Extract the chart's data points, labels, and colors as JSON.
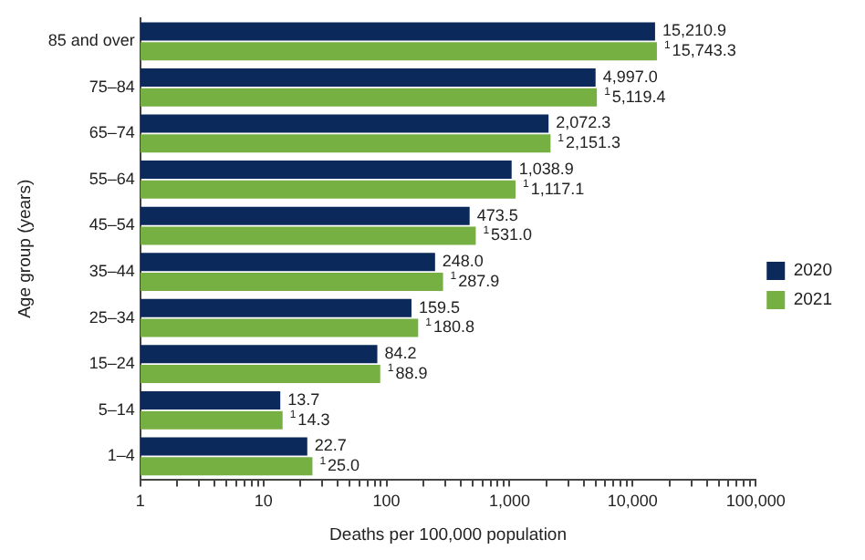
{
  "chart_data": {
    "type": "bar",
    "orientation": "horizontal",
    "log": "x",
    "xlabel": "Deaths per 100,000 population",
    "ylabel": "Age group (years)",
    "categories": [
      "85 and over",
      "75–84",
      "65–74",
      "55–64",
      "45–54",
      "35–44",
      "25–34",
      "15–24",
      "5–14",
      "1–4"
    ],
    "series": [
      {
        "name": "2020",
        "color": "#0b2a5b",
        "values": [
          15210.9,
          4997.0,
          2072.3,
          1038.9,
          473.5,
          248.0,
          159.5,
          84.2,
          13.7,
          22.7
        ],
        "value_labels": [
          "15,210.9",
          "4,997.0",
          "2,072.3",
          "1,038.9",
          "473.5",
          "248.0",
          "159.5",
          "84.2",
          "13.7",
          "22.7"
        ]
      },
      {
        "name": "2021",
        "color": "#76b043",
        "values": [
          15743.3,
          5119.4,
          2151.3,
          1117.1,
          531.0,
          287.9,
          180.8,
          88.9,
          14.3,
          25.0
        ],
        "value_labels": [
          "$^{1}$15,743.3",
          "$^{1}$5,119.4",
          "$^{1}$2,151.3",
          "$^{1}$1,117.1",
          "$^{1}$531.0",
          "$^{1}$287.9",
          "$^{1}$180.8",
          "$^{1}$88.9",
          "$^{1}$14.3",
          "$^{1}$25.0"
        ]
      }
    ],
    "xlim": [
      1,
      100000
    ],
    "xticks": [
      1,
      {
        "value": 2,
        "label": null
      },
      {
        "value": 3,
        "label": null
      },
      {
        "value": 4,
        "label": null
      },
      {
        "value": 5,
        "label": null
      },
      {
        "value": 6,
        "label": null
      },
      {
        "value": 7,
        "label": null
      },
      {
        "value": 8,
        "label": null
      },
      {
        "value": 9,
        "label": null
      },
      10,
      {
        "value": 20,
        "label": null
      },
      {
        "value": 30,
        "label": null
      },
      {
        "value": 40,
        "label": null
      },
      {
        "value": 50,
        "label": null
      },
      {
        "value": 60,
        "label": null
      },
      {
        "value": 70,
        "label": null
      },
      {
        "value": 80,
        "label": null
      },
      {
        "value": 90,
        "label": null
      },
      100,
      {
        "value": 200,
        "label": null
      },
      {
        "value": 300,
        "label": null
      },
      {
        "value": 400,
        "label": null
      },
      {
        "value": 500,
        "label": null
      },
      {
        "value": 600,
        "label": null
      },
      {
        "value": 700,
        "label": null
      },
      {
        "value": 800,
        "label": null
      },
      {
        "value": 900,
        "label": null
      },
      {
        "value": 1000,
        "label": "1,000"
      },
      {
        "value": 2000,
        "label": null
      },
      {
        "value": 3000,
        "label": null
      },
      {
        "value": 4000,
        "label": null
      },
      {
        "value": 5000,
        "label": null
      },
      {
        "value": 6000,
        "label": null
      },
      {
        "value": 7000,
        "label": null
      },
      {
        "value": 8000,
        "label": null
      },
      {
        "value": 9000,
        "label": null
      },
      {
        "value": 10000,
        "label": "10,000"
      },
      {
        "value": 20000,
        "label": null
      },
      {
        "value": 30000,
        "label": null
      },
      {
        "value": 40000,
        "label": null
      },
      {
        "value": 50000,
        "label": null
      },
      {
        "value": 60000,
        "label": null
      },
      {
        "value": 70000,
        "label": null
      },
      {
        "value": 80000,
        "label": null
      },
      {
        "value": 90000,
        "label": null
      },
      {
        "value": 100000,
        "label": "100,000"
      }
    ],
    "grid": false,
    "legend": "right"
  }
}
